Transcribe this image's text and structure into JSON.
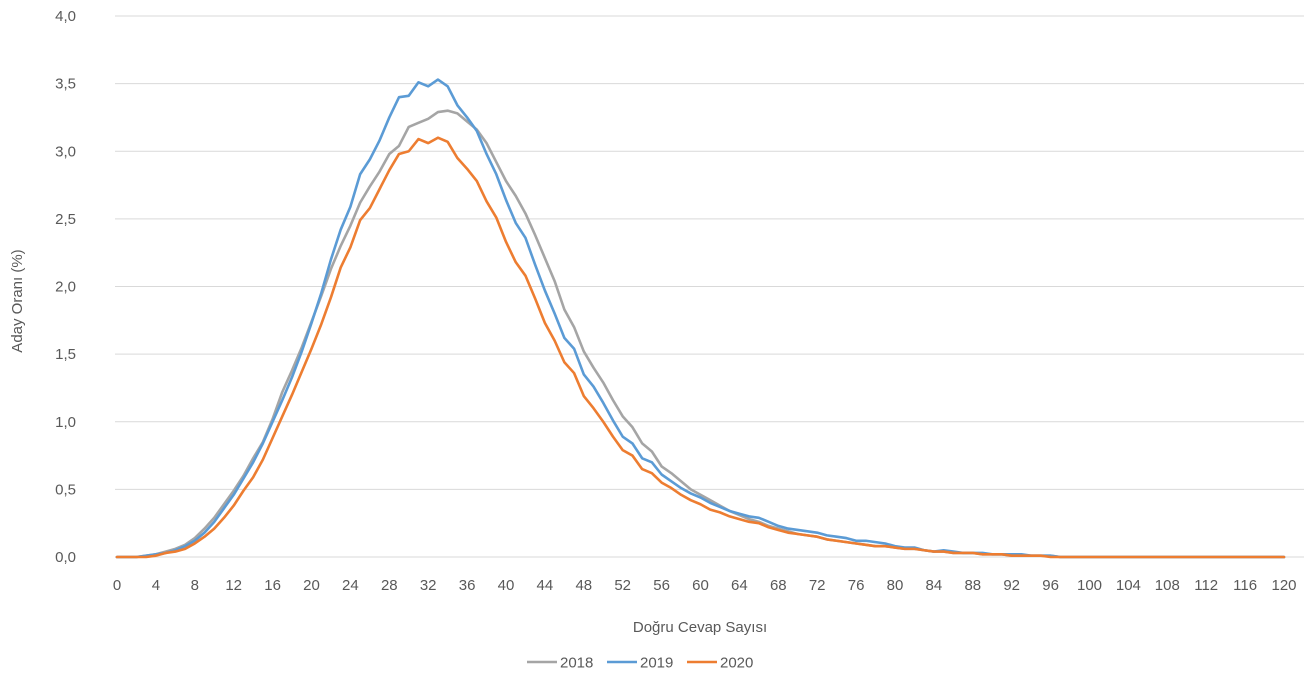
{
  "chart_data": {
    "type": "line",
    "xlabel": "Doğru Cevap Sayısı",
    "ylabel": "Aday Oranı (%)",
    "xlim": [
      0,
      120
    ],
    "ylim": [
      0,
      4
    ],
    "grid": true,
    "legend_position": "bottom",
    "y_ticks": [
      "0,0",
      "0,5",
      "1,0",
      "1,5",
      "2,0",
      "2,5",
      "3,0",
      "3,5",
      "4,0"
    ],
    "x_ticks": [
      "0",
      "4",
      "8",
      "12",
      "16",
      "20",
      "24",
      "28",
      "32",
      "36",
      "40",
      "44",
      "48",
      "52",
      "56",
      "60",
      "64",
      "68",
      "72",
      "76",
      "80",
      "84",
      "88",
      "92",
      "96",
      "100",
      "104",
      "108",
      "112",
      "116",
      "120"
    ],
    "x": [
      0,
      1,
      2,
      3,
      4,
      5,
      6,
      7,
      8,
      9,
      10,
      11,
      12,
      13,
      14,
      15,
      16,
      17,
      18,
      19,
      20,
      21,
      22,
      23,
      24,
      25,
      26,
      27,
      28,
      29,
      30,
      31,
      32,
      33,
      34,
      35,
      36,
      37,
      38,
      39,
      40,
      41,
      42,
      43,
      44,
      45,
      46,
      47,
      48,
      49,
      50,
      51,
      52,
      53,
      54,
      55,
      56,
      57,
      58,
      59,
      60,
      61,
      62,
      63,
      64,
      65,
      66,
      67,
      68,
      69,
      70,
      71,
      72,
      73,
      74,
      75,
      76,
      77,
      78,
      79,
      80,
      81,
      82,
      83,
      84,
      85,
      86,
      87,
      88,
      89,
      90,
      91,
      92,
      93,
      94,
      95,
      96,
      97,
      98,
      99,
      100,
      101,
      102,
      103,
      104,
      105,
      106,
      107,
      108,
      109,
      110,
      111,
      112,
      113,
      114,
      115,
      116,
      117,
      118,
      119,
      120
    ],
    "series": [
      {
        "name": "2018",
        "color": "#a5a5a5",
        "values": [
          0,
          0,
          0,
          0.01,
          0.02,
          0.04,
          0.06,
          0.09,
          0.14,
          0.21,
          0.29,
          0.39,
          0.49,
          0.6,
          0.73,
          0.85,
          1.02,
          1.22,
          1.38,
          1.55,
          1.74,
          1.93,
          2.13,
          2.3,
          2.45,
          2.62,
          2.74,
          2.85,
          2.98,
          3.04,
          3.18,
          3.21,
          3.24,
          3.29,
          3.3,
          3.28,
          3.22,
          3.16,
          3.06,
          2.92,
          2.78,
          2.67,
          2.54,
          2.38,
          2.21,
          2.04,
          1.83,
          1.7,
          1.52,
          1.4,
          1.29,
          1.16,
          1.04,
          0.96,
          0.84,
          0.78,
          0.67,
          0.62,
          0.56,
          0.5,
          0.46,
          0.42,
          0.38,
          0.34,
          0.31,
          0.28,
          0.26,
          0.23,
          0.21,
          0.19,
          0.17,
          0.16,
          0.15,
          0.13,
          0.12,
          0.11,
          0.1,
          0.09,
          0.08,
          0.08,
          0.07,
          0.06,
          0.06,
          0.05,
          0.04,
          0.04,
          0.03,
          0.03,
          0.03,
          0.02,
          0.02,
          0.02,
          0.01,
          0.01,
          0.01,
          0.01,
          0.01,
          0,
          0,
          0,
          0,
          0,
          0,
          0,
          0,
          0,
          0,
          0,
          0,
          0,
          0,
          0,
          0,
          0,
          0,
          0,
          0,
          0,
          0,
          0,
          0
        ]
      },
      {
        "name": "2019",
        "color": "#5b9bd5",
        "values": [
          0,
          0,
          0,
          0.01,
          0.02,
          0.03,
          0.05,
          0.08,
          0.12,
          0.18,
          0.26,
          0.36,
          0.46,
          0.58,
          0.7,
          0.84,
          1.0,
          1.16,
          1.33,
          1.52,
          1.73,
          1.95,
          2.2,
          2.42,
          2.59,
          2.83,
          2.94,
          3.08,
          3.25,
          3.4,
          3.41,
          3.51,
          3.48,
          3.53,
          3.48,
          3.34,
          3.25,
          3.15,
          2.98,
          2.83,
          2.64,
          2.47,
          2.36,
          2.16,
          1.97,
          1.8,
          1.62,
          1.54,
          1.35,
          1.26,
          1.14,
          1.01,
          0.89,
          0.84,
          0.73,
          0.7,
          0.61,
          0.56,
          0.51,
          0.47,
          0.44,
          0.4,
          0.37,
          0.34,
          0.32,
          0.3,
          0.29,
          0.26,
          0.23,
          0.21,
          0.2,
          0.19,
          0.18,
          0.16,
          0.15,
          0.14,
          0.12,
          0.12,
          0.11,
          0.1,
          0.08,
          0.07,
          0.07,
          0.05,
          0.04,
          0.05,
          0.04,
          0.03,
          0.03,
          0.03,
          0.02,
          0.02,
          0.02,
          0.02,
          0.01,
          0.01,
          0.01,
          0,
          0,
          0,
          0,
          0,
          0,
          0,
          0,
          0,
          0,
          0,
          0,
          0,
          0,
          0,
          0,
          0,
          0,
          0,
          0,
          0,
          0,
          0,
          0
        ]
      },
      {
        "name": "2020",
        "color": "#ed7d31",
        "values": [
          0,
          0,
          0,
          0,
          0.01,
          0.03,
          0.04,
          0.06,
          0.1,
          0.15,
          0.21,
          0.29,
          0.38,
          0.49,
          0.59,
          0.72,
          0.88,
          1.04,
          1.2,
          1.37,
          1.54,
          1.72,
          1.92,
          2.14,
          2.29,
          2.49,
          2.58,
          2.72,
          2.86,
          2.98,
          3.0,
          3.09,
          3.06,
          3.1,
          3.07,
          2.95,
          2.87,
          2.78,
          2.63,
          2.51,
          2.33,
          2.18,
          2.08,
          1.91,
          1.73,
          1.6,
          1.44,
          1.36,
          1.19,
          1.1,
          1.0,
          0.89,
          0.79,
          0.75,
          0.65,
          0.62,
          0.55,
          0.51,
          0.46,
          0.42,
          0.39,
          0.35,
          0.33,
          0.3,
          0.28,
          0.26,
          0.25,
          0.22,
          0.2,
          0.18,
          0.17,
          0.16,
          0.15,
          0.13,
          0.12,
          0.11,
          0.1,
          0.09,
          0.08,
          0.08,
          0.07,
          0.06,
          0.06,
          0.05,
          0.04,
          0.04,
          0.03,
          0.03,
          0.03,
          0.02,
          0.02,
          0.02,
          0.01,
          0.01,
          0.01,
          0.01,
          0,
          0,
          0,
          0,
          0,
          0,
          0,
          0,
          0,
          0,
          0,
          0,
          0,
          0,
          0,
          0,
          0,
          0,
          0,
          0,
          0,
          0,
          0,
          0,
          0
        ]
      }
    ]
  }
}
